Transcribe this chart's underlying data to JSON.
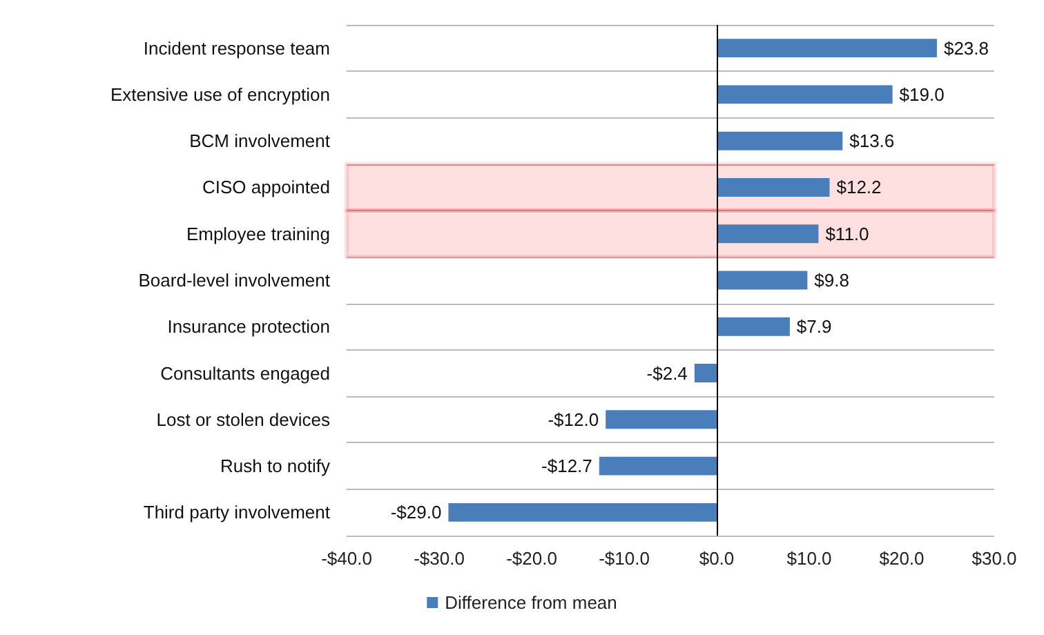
{
  "chart_data": {
    "type": "bar",
    "orientation": "horizontal",
    "categories": [
      "Incident response team",
      "Extensive use of encryption",
      "BCM involvement",
      "CISO appointed",
      "Employee training",
      "Board-level involvement",
      "Insurance protection",
      "Consultants engaged",
      "Lost or stolen devices",
      "Rush to notify",
      "Third party involvement"
    ],
    "series": [
      {
        "name": "Difference from mean",
        "color": "#4a7ebb",
        "values": [
          23.8,
          19.0,
          13.6,
          12.2,
          11.0,
          9.8,
          7.9,
          -2.4,
          -12.0,
          -12.7,
          -29.0
        ],
        "value_labels": [
          "$23.8",
          "$19.0",
          "$13.6",
          "$12.2",
          "$11.0",
          "$9.8",
          "$7.9",
          "-$2.4",
          "-$12.0",
          "-$12.7",
          "-$29.0"
        ]
      }
    ],
    "xlim": [
      -40,
      30
    ],
    "xticks": [
      {
        "value": -40,
        "label": "-$40.0"
      },
      {
        "value": -30,
        "label": "-$30.0"
      },
      {
        "value": -20,
        "label": "-$20.0"
      },
      {
        "value": -10,
        "label": "-$10.0"
      },
      {
        "value": 0,
        "label": "$0.0"
      },
      {
        "value": 10,
        "label": "$10.0"
      },
      {
        "value": 20,
        "label": "$20.0"
      },
      {
        "value": 30,
        "label": "$30.0"
      }
    ],
    "ref_lines": [
      {
        "axis": "x",
        "value": 0,
        "color": "#000000"
      }
    ],
    "bands": [
      {
        "axis": "y",
        "from": "CISO appointed",
        "to": "CISO appointed",
        "color": "#ff0000"
      },
      {
        "axis": "y",
        "from": "Employee training",
        "to": "Employee training",
        "color": "#ff0000"
      }
    ],
    "grid": "y",
    "legend": "bottom"
  }
}
